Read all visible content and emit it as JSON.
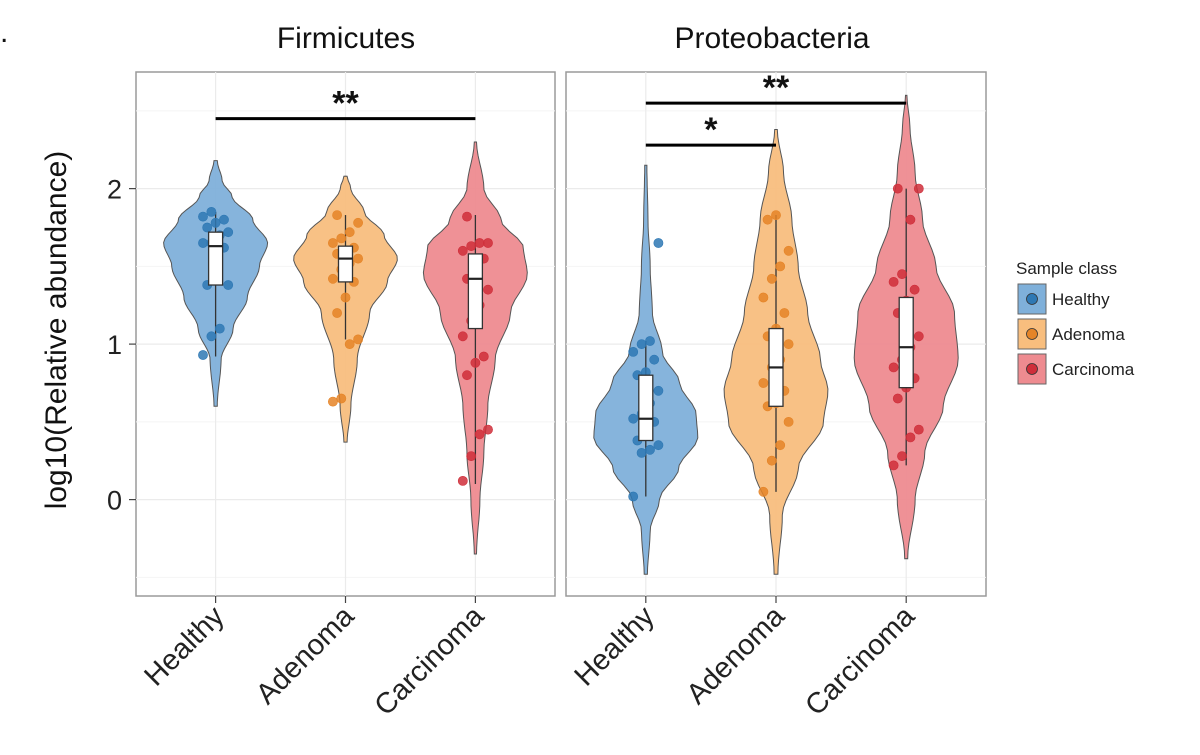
{
  "panel_letter": ".",
  "legend": {
    "title": "Sample class",
    "items": [
      {
        "label": "Healthy",
        "fill": "#7fb0da",
        "point": "#2e78b4"
      },
      {
        "label": "Adenoma",
        "fill": "#f8be7e",
        "point": "#e58427"
      },
      {
        "label": "Carcinoma",
        "fill": "#ee8b90",
        "point": "#cf2e3a"
      }
    ]
  },
  "chart_data": {
    "type": "violin",
    "ylabel": "log10(Relative abundance)",
    "ylim": [
      -0.62,
      2.75
    ],
    "yticks": [
      0,
      1,
      2
    ],
    "grid": true,
    "legend_position": "right",
    "categories": [
      "Healthy",
      "Adenoma",
      "Carcinoma"
    ],
    "panels": [
      {
        "title": "Firmicutes",
        "groups": [
          {
            "name": "Healthy",
            "range": [
              0.6,
              2.18
            ],
            "box": {
              "q1": 1.38,
              "median": 1.63,
              "q3": 1.72,
              "whisker_low": 0.92,
              "whisker_high": 1.85
            },
            "density": [
              [
                0.6,
                0.03
              ],
              [
                0.9,
                0.1
              ],
              [
                1.1,
                0.32
              ],
              [
                1.3,
                0.58
              ],
              [
                1.5,
                0.8
              ],
              [
                1.65,
                0.95
              ],
              [
                1.8,
                0.68
              ],
              [
                1.95,
                0.3
              ],
              [
                2.05,
                0.12
              ],
              [
                2.18,
                0.03
              ]
            ],
            "points": [
              0.93,
              1.05,
              1.1,
              1.38,
              1.38,
              1.5,
              1.62,
              1.65,
              1.65,
              1.7,
              1.72,
              1.75,
              1.78,
              1.8,
              1.82,
              1.85
            ]
          },
          {
            "name": "Adenoma",
            "range": [
              0.37,
              2.08
            ],
            "box": {
              "q1": 1.4,
              "median": 1.55,
              "q3": 1.63,
              "whisker_low": 1.03,
              "whisker_high": 1.83
            },
            "density": [
              [
                0.37,
                0.03
              ],
              [
                0.6,
                0.1
              ],
              [
                0.9,
                0.22
              ],
              [
                1.2,
                0.45
              ],
              [
                1.4,
                0.78
              ],
              [
                1.55,
                0.97
              ],
              [
                1.7,
                0.72
              ],
              [
                1.85,
                0.35
              ],
              [
                2.0,
                0.1
              ],
              [
                2.08,
                0.03
              ]
            ],
            "points": [
              0.63,
              0.65,
              1.0,
              1.03,
              1.2,
              1.3,
              1.4,
              1.42,
              1.48,
              1.52,
              1.55,
              1.58,
              1.6,
              1.62,
              1.65,
              1.68,
              1.72,
              1.78,
              1.83
            ]
          },
          {
            "name": "Carcinoma",
            "range": [
              -0.35,
              2.3
            ],
            "box": {
              "q1": 1.1,
              "median": 1.42,
              "q3": 1.58,
              "whisker_low": 0.1,
              "whisker_high": 1.83
            },
            "density": [
              [
                -0.35,
                0.02
              ],
              [
                0.0,
                0.08
              ],
              [
                0.3,
                0.15
              ],
              [
                0.6,
                0.22
              ],
              [
                0.9,
                0.35
              ],
              [
                1.2,
                0.62
              ],
              [
                1.45,
                0.92
              ],
              [
                1.62,
                0.85
              ],
              [
                1.8,
                0.45
              ],
              [
                2.0,
                0.15
              ],
              [
                2.3,
                0.02
              ]
            ],
            "points": [
              0.12,
              0.28,
              0.42,
              0.45,
              0.8,
              0.88,
              0.92,
              1.05,
              1.15,
              1.25,
              1.35,
              1.42,
              1.5,
              1.55,
              1.6,
              1.63,
              1.65,
              1.65,
              1.82
            ]
          }
        ],
        "comparisons": [
          {
            "from": "Healthy",
            "to": "Carcinoma",
            "y": 2.45,
            "label": "**"
          }
        ]
      },
      {
        "title": "Proteobacteria",
        "groups": [
          {
            "name": "Healthy",
            "range": [
              -0.48,
              2.15
            ],
            "box": {
              "q1": 0.38,
              "median": 0.52,
              "q3": 0.8,
              "whisker_low": 0.02,
              "whisker_high": 1.02
            },
            "density": [
              [
                -0.48,
                0.03
              ],
              [
                -0.2,
                0.08
              ],
              [
                0.0,
                0.25
              ],
              [
                0.2,
                0.6
              ],
              [
                0.4,
                0.95
              ],
              [
                0.55,
                0.92
              ],
              [
                0.75,
                0.62
              ],
              [
                0.95,
                0.3
              ],
              [
                1.2,
                0.12
              ],
              [
                1.5,
                0.08
              ],
              [
                1.8,
                0.04
              ],
              [
                2.15,
                0.02
              ]
            ],
            "points": [
              0.02,
              0.3,
              0.32,
              0.35,
              0.38,
              0.42,
              0.5,
              0.52,
              0.55,
              0.62,
              0.7,
              0.8,
              0.82,
              0.9,
              0.95,
              1.0,
              1.02,
              1.65
            ]
          },
          {
            "name": "Adenoma",
            "range": [
              -0.48,
              2.38
            ],
            "box": {
              "q1": 0.6,
              "median": 0.85,
              "q3": 1.1,
              "whisker_low": 0.05,
              "whisker_high": 1.83
            },
            "density": [
              [
                -0.48,
                0.03
              ],
              [
                -0.1,
                0.1
              ],
              [
                0.2,
                0.35
              ],
              [
                0.5,
                0.75
              ],
              [
                0.7,
                0.82
              ],
              [
                0.9,
                0.7
              ],
              [
                1.2,
                0.5
              ],
              [
                1.5,
                0.35
              ],
              [
                1.8,
                0.25
              ],
              [
                2.1,
                0.12
              ],
              [
                2.38,
                0.02
              ]
            ],
            "points": [
              0.05,
              0.25,
              0.35,
              0.5,
              0.6,
              0.62,
              0.7,
              0.75,
              0.85,
              0.9,
              1.0,
              1.05,
              1.1,
              1.2,
              1.3,
              1.42,
              1.5,
              1.6,
              1.8,
              1.83
            ]
          },
          {
            "name": "Carcinoma",
            "range": [
              -0.38,
              2.6
            ],
            "box": {
              "q1": 0.72,
              "median": 0.98,
              "q3": 1.3,
              "whisker_low": 0.22,
              "whisker_high": 2.0
            },
            "density": [
              [
                -0.38,
                0.02
              ],
              [
                0.0,
                0.12
              ],
              [
                0.3,
                0.25
              ],
              [
                0.6,
                0.5
              ],
              [
                0.9,
                0.7
              ],
              [
                1.2,
                0.65
              ],
              [
                1.5,
                0.4
              ],
              [
                1.8,
                0.22
              ],
              [
                2.1,
                0.12
              ],
              [
                2.4,
                0.05
              ],
              [
                2.6,
                0.01
              ]
            ],
            "points": [
              0.22,
              0.28,
              0.4,
              0.45,
              0.65,
              0.72,
              0.78,
              0.85,
              0.9,
              0.98,
              1.05,
              1.2,
              1.28,
              1.35,
              1.4,
              1.45,
              1.8,
              2.0,
              2.0
            ]
          }
        ],
        "comparisons": [
          {
            "from": "Healthy",
            "to": "Adenoma",
            "y": 2.28,
            "label": "*"
          },
          {
            "from": "Healthy",
            "to": "Carcinoma",
            "y": 2.55,
            "label": "**"
          }
        ]
      }
    ]
  }
}
